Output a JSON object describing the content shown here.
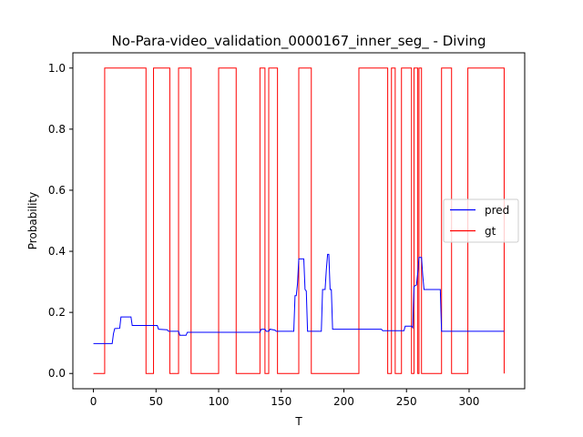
{
  "chart_data": {
    "type": "line",
    "title": "No-Para-video_validation_0000167_inner_seg_ - Diving",
    "xlabel": "T",
    "ylabel": "Probability",
    "xlim": [
      -16.4,
      344.4
    ],
    "ylim": [
      -0.05,
      1.05
    ],
    "xticks": [
      0,
      50,
      100,
      150,
      200,
      250,
      300
    ],
    "yticks": [
      "0.0",
      "0.2",
      "0.4",
      "0.6",
      "0.8",
      "1.0"
    ],
    "grid": false,
    "legend_position": "center-right",
    "series": [
      {
        "name": "pred",
        "color": "#0000ff",
        "step": false,
        "points": [
          [
            0,
            0.098
          ],
          [
            15,
            0.098
          ],
          [
            16,
            0.13
          ],
          [
            17,
            0.147
          ],
          [
            21,
            0.148
          ],
          [
            22,
            0.185
          ],
          [
            30,
            0.185
          ],
          [
            31,
            0.157
          ],
          [
            51,
            0.157
          ],
          [
            52,
            0.145
          ],
          [
            59,
            0.143
          ],
          [
            60,
            0.138
          ],
          [
            68,
            0.138
          ],
          [
            69,
            0.125
          ],
          [
            74,
            0.125
          ],
          [
            75,
            0.135
          ],
          [
            133,
            0.135
          ],
          [
            134,
            0.145
          ],
          [
            137,
            0.145
          ],
          [
            138,
            0.138
          ],
          [
            140,
            0.138
          ],
          [
            141,
            0.145
          ],
          [
            145,
            0.142
          ],
          [
            146,
            0.138
          ],
          [
            160,
            0.138
          ],
          [
            161,
            0.255
          ],
          [
            162,
            0.255
          ],
          [
            163,
            0.295
          ],
          [
            164,
            0.375
          ],
          [
            168,
            0.375
          ],
          [
            169,
            0.275
          ],
          [
            170,
            0.27
          ],
          [
            171,
            0.138
          ],
          [
            182,
            0.138
          ],
          [
            183,
            0.275
          ],
          [
            185,
            0.275
          ],
          [
            186,
            0.34
          ],
          [
            187,
            0.39
          ],
          [
            188,
            0.39
          ],
          [
            189,
            0.275
          ],
          [
            190,
            0.275
          ],
          [
            191,
            0.145
          ],
          [
            230,
            0.145
          ],
          [
            231,
            0.14
          ],
          [
            248,
            0.14
          ],
          [
            249,
            0.155
          ],
          [
            254,
            0.155
          ],
          [
            255,
            0.15
          ],
          [
            256,
            0.285
          ],
          [
            258,
            0.29
          ],
          [
            259,
            0.33
          ],
          [
            260,
            0.38
          ],
          [
            262,
            0.38
          ],
          [
            263,
            0.32
          ],
          [
            264,
            0.275
          ],
          [
            277,
            0.275
          ],
          [
            278,
            0.138
          ],
          [
            328,
            0.138
          ]
        ]
      },
      {
        "name": "gt",
        "color": "#ff0000",
        "step": true,
        "points": [
          [
            0,
            0
          ],
          [
            9,
            0
          ],
          [
            9,
            1
          ],
          [
            42,
            1
          ],
          [
            42,
            0
          ],
          [
            48,
            0
          ],
          [
            48,
            1
          ],
          [
            61,
            1
          ],
          [
            61,
            0
          ],
          [
            68,
            0
          ],
          [
            68,
            1
          ],
          [
            78,
            1
          ],
          [
            78,
            0
          ],
          [
            100,
            0
          ],
          [
            100,
            1
          ],
          [
            114,
            1
          ],
          [
            114,
            0
          ],
          [
            133,
            0
          ],
          [
            133,
            1
          ],
          [
            137,
            1
          ],
          [
            137,
            0
          ],
          [
            140,
            0
          ],
          [
            140,
            1
          ],
          [
            147,
            1
          ],
          [
            147,
            0
          ],
          [
            164,
            0
          ],
          [
            164,
            1
          ],
          [
            174,
            1
          ],
          [
            174,
            0
          ],
          [
            212,
            0
          ],
          [
            212,
            1
          ],
          [
            235,
            1
          ],
          [
            235,
            0
          ],
          [
            238,
            0
          ],
          [
            238,
            1
          ],
          [
            241,
            1
          ],
          [
            241,
            0
          ],
          [
            246,
            0
          ],
          [
            246,
            1
          ],
          [
            254,
            1
          ],
          [
            254,
            0
          ],
          [
            256,
            0
          ],
          [
            256,
            1
          ],
          [
            259,
            1
          ],
          [
            259,
            0
          ],
          [
            260,
            0
          ],
          [
            260,
            1
          ],
          [
            262,
            1
          ],
          [
            262,
            0
          ],
          [
            278,
            0
          ],
          [
            278,
            1
          ],
          [
            286,
            1
          ],
          [
            286,
            0
          ],
          [
            299,
            0
          ],
          [
            299,
            1
          ],
          [
            328,
            1
          ],
          [
            328,
            0
          ]
        ]
      }
    ]
  }
}
